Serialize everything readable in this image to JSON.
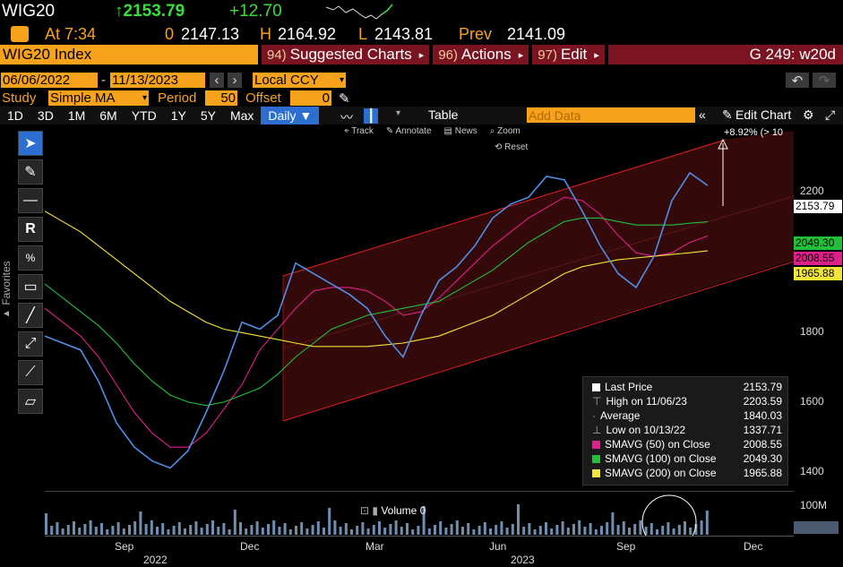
{
  "header": {
    "ticker": "WIG20",
    "last_price": "↑2153.79",
    "change": "+12.70",
    "time_label": "At 7:34",
    "open_label": "0",
    "open_value": "2147.13",
    "high_label": "H",
    "high_value": "2164.92",
    "low_label": "L",
    "low_value": "2143.81",
    "prev_label": "Prev",
    "prev_value": "2141.09"
  },
  "menubar": {
    "title": "WIG20 Index",
    "items": [
      {
        "num": "94)",
        "label": "Suggested Charts"
      },
      {
        "num": "96)",
        "label": "Actions"
      },
      {
        "num": "97)",
        "label": "Edit"
      }
    ],
    "right": "G 249: w20d"
  },
  "daterow": {
    "start": "06/06/2022",
    "sep": "-",
    "end": "11/13/2023",
    "currency": "Local CCY"
  },
  "studyrow": {
    "study_label": "Study",
    "study_value": "Simple MA",
    "period_label": "Period",
    "period_value": "50",
    "offset_label": "Offset",
    "offset_value": "0"
  },
  "tabs": [
    "1D",
    "3D",
    "1M",
    "6M",
    "YTD",
    "1Y",
    "5Y",
    "Max"
  ],
  "active_tab": "Daily ▼",
  "table_label": "Table",
  "add_data_placeholder": "Add Data",
  "edit_chart": "Edit Chart",
  "subtoolbar": {
    "track": "Track",
    "annotate": "Annotate",
    "news": "News",
    "zoom": "Zoom",
    "reset": "Reset"
  },
  "annotation_text": "+8.92% (> 10",
  "yaxis": {
    "ticks": [
      "2200",
      "1800",
      "1600",
      "1400"
    ],
    "tags": [
      {
        "text": "2153.79",
        "color": "#ffffff"
      },
      {
        "text": "2049.30",
        "color": "#22c03a"
      },
      {
        "text": "2008.55",
        "color": "#e0208a"
      },
      {
        "text": "1965.88",
        "color": "#f2e53a"
      }
    ],
    "volume_tick": "100M"
  },
  "xaxis": {
    "months": [
      "Sep",
      "Dec",
      "Mar",
      "Jun",
      "Sep",
      "Dec"
    ],
    "years": [
      "2022",
      "2023"
    ]
  },
  "legend": [
    {
      "label": "Last Price",
      "value": "2153.79",
      "swatch": "#ffffff"
    },
    {
      "label": "High on 11/06/23",
      "value": "2203.59",
      "swatch": ""
    },
    {
      "label": "Average",
      "value": "1840.03",
      "swatch": ""
    },
    {
      "label": "Low on 10/13/22",
      "value": "1337.71",
      "swatch": ""
    },
    {
      "label": "SMAVG (50)  on Close",
      "value": "2008.55",
      "swatch": "#e0208a"
    },
    {
      "label": "SMAVG (100)  on Close",
      "value": "2049.30",
      "swatch": "#22c03a"
    },
    {
      "label": "SMAVG (200)  on Close",
      "value": "1965.88",
      "swatch": "#f2e53a"
    }
  ],
  "volume_label": "Volume 0",
  "colors": {
    "accent": "#f7a21b",
    "menu": "#7a1420",
    "active_tab": "#2c6fd1",
    "channel": "#e02020",
    "price": "#4f8fe8"
  },
  "chart_data": {
    "type": "line",
    "ylim": [
      1300,
      2300
    ],
    "series": [
      {
        "name": "Last Price",
        "values": [
          1720,
          1700,
          1680,
          1590,
          1470,
          1400,
          1360,
          1340,
          1390,
          1500,
          1620,
          1760,
          1740,
          1780,
          1930,
          1900,
          1870,
          1840,
          1800,
          1720,
          1660,
          1780,
          1880,
          1920,
          1980,
          2060,
          2100,
          2120,
          2180,
          2170,
          2080,
          1980,
          1900,
          1860,
          1950,
          2110,
          2190,
          2153.79
        ]
      },
      {
        "name": "SMAVG (50)",
        "values": [
          1800,
          1760,
          1720,
          1660,
          1580,
          1500,
          1440,
          1400,
          1400,
          1440,
          1510,
          1580,
          1680,
          1740,
          1800,
          1850,
          1860,
          1860,
          1850,
          1820,
          1780,
          1790,
          1830,
          1880,
          1930,
          1980,
          2020,
          2060,
          2090,
          2120,
          2110,
          2070,
          2010,
          1960,
          1950,
          1960,
          1990,
          2008.55
        ]
      },
      {
        "name": "SMAVG (100)",
        "values": [
          1870,
          1830,
          1790,
          1750,
          1700,
          1640,
          1590,
          1550,
          1530,
          1520,
          1530,
          1550,
          1570,
          1610,
          1660,
          1700,
          1740,
          1760,
          1780,
          1790,
          1800,
          1810,
          1820,
          1850,
          1880,
          1910,
          1950,
          1990,
          2020,
          2050,
          2060,
          2060,
          2050,
          2040,
          2040,
          2040,
          2045,
          2049.3
        ]
      },
      {
        "name": "SMAVG (200)",
        "values": [
          2080,
          2050,
          2020,
          1980,
          1940,
          1900,
          1860,
          1820,
          1790,
          1760,
          1740,
          1730,
          1720,
          1710,
          1700,
          1690,
          1690,
          1690,
          1690,
          1695,
          1700,
          1710,
          1720,
          1740,
          1760,
          1780,
          1810,
          1840,
          1870,
          1900,
          1920,
          1930,
          1940,
          1945,
          1950,
          1955,
          1960,
          1965.88
        ]
      }
    ]
  }
}
